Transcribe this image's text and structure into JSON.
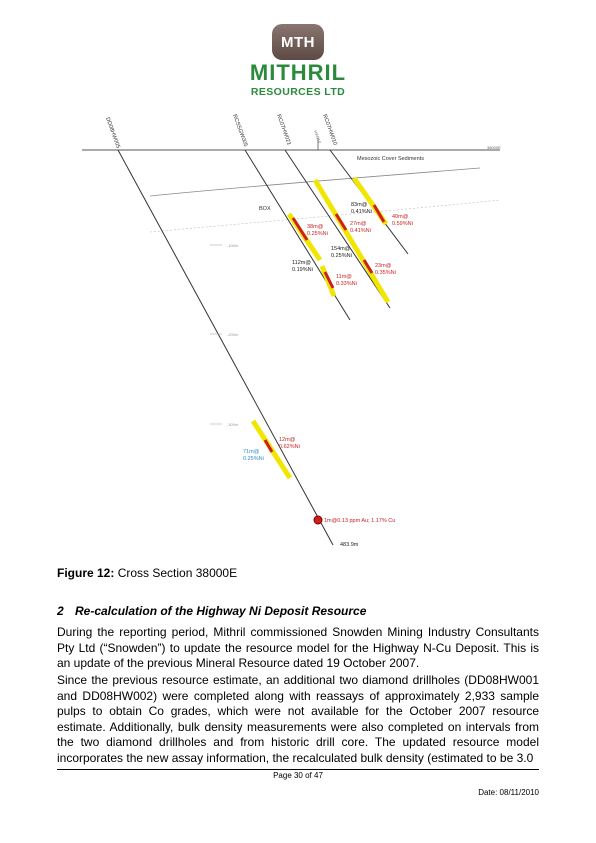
{
  "logo": {
    "badge": "MTH",
    "name": "MITHRIL",
    "subtitle": "RESOURCES LTD"
  },
  "figure": {
    "collar_labels": [
      "DD08HW005",
      "RCSSGW005",
      "RC07HW021",
      "HW010",
      "RC07HW010"
    ],
    "easting_label": "38000E",
    "cover_label": "Mesozoic Cover Sediments",
    "box_label": "BOX",
    "depth_labels": [
      "-100m",
      "-200m",
      "-300m"
    ],
    "intercepts": [
      {
        "len": "83m@",
        "grade": "0.41%Ni",
        "color": "#222222"
      },
      {
        "len": "40m@",
        "grade": "0.59%Ni",
        "color": "#cc2222"
      },
      {
        "len": "38m@",
        "grade": "0.25%Ni",
        "color": "#cc2222"
      },
      {
        "len": "27m@",
        "grade": "0.41%Ni",
        "color": "#cc2222"
      },
      {
        "len": "154m@",
        "grade": "0.25%Ni",
        "color": "#222222"
      },
      {
        "len": "112m@",
        "grade": "0.19%Ni",
        "color": "#222222"
      },
      {
        "len": "23m@",
        "grade": "0.35%Ni",
        "color": "#cc2222"
      },
      {
        "len": "11m@",
        "grade": "0.33%Ni",
        "color": "#cc2222"
      },
      {
        "len": "12m@",
        "grade": "0.62%Ni",
        "color": "#cc2222"
      },
      {
        "len": "71m@",
        "grade": "0.25%Ni",
        "color": "#2b8fd0"
      }
    ],
    "au_intercept": "1m@0.13 ppm Au; 1.17% Cu",
    "end_depth": "483.9m"
  },
  "caption": {
    "label": "Figure 12:",
    "text": " Cross Section 38000E"
  },
  "section": {
    "number": "2",
    "title": "Re-calculation of the Highway Ni Deposit Resource"
  },
  "paragraphs": [
    "During the reporting period, Mithril commissioned Snowden Mining Industry Consultants Pty Ltd (“Snowden”) to update the resource model for the Highway N-Cu Deposit. This is an update of the previous Mineral Resource dated 19 October 2007.",
    "Since the previous resource estimate, an additional two diamond drillholes (DD08HW001 and DD08HW002) were completed along with reassays of approximately 2,933 sample pulps  to obtain Co grades, which were not available for the October 2007 resource estimate. Additionally, bulk density measurements were also completed on intervals from the two diamond drillholes and from historic drill core. The updated resource model incorporates the new assay information, the recalculated bulk density (estimated to be 3.0"
  ],
  "footer": {
    "page": "Page 30 of 47",
    "date": "Date: 08/11/2010"
  }
}
